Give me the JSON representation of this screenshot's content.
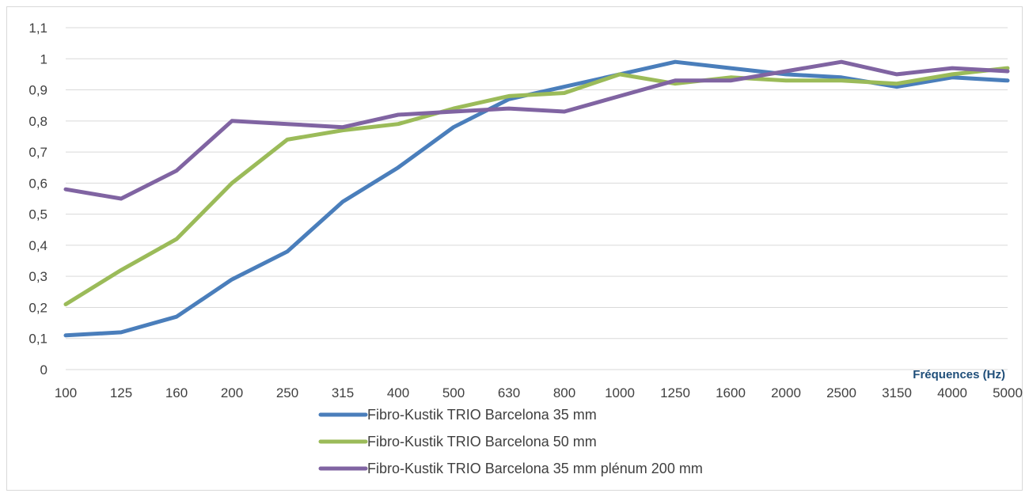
{
  "chart_data": {
    "type": "line",
    "xlabel": "Fréquences (Hz)",
    "ylabel": "",
    "ylim": [
      0,
      1.1
    ],
    "ytick_step": 0.1,
    "grid": "horizontal",
    "legend_position": "bottom",
    "categories": [
      "100",
      "125",
      "160",
      "200",
      "250",
      "315",
      "400",
      "500",
      "630",
      "800",
      "1000",
      "1250",
      "1600",
      "2000",
      "2500",
      "3150",
      "4000",
      "5000"
    ],
    "series": [
      {
        "name": "Fibro-Kustik TRIO Barcelona 35 mm",
        "color": "#4a7ebb",
        "values": [
          0.11,
          0.12,
          0.17,
          0.29,
          0.38,
          0.54,
          0.65,
          0.78,
          0.87,
          0.91,
          0.95,
          0.99,
          0.97,
          0.95,
          0.94,
          0.91,
          0.94,
          0.93
        ]
      },
      {
        "name": "Fibro-Kustik TRIO Barcelona 50 mm",
        "color": "#9bbb59",
        "values": [
          0.21,
          0.32,
          0.42,
          0.6,
          0.74,
          0.77,
          0.79,
          0.84,
          0.88,
          0.89,
          0.95,
          0.92,
          0.94,
          0.93,
          0.93,
          0.92,
          0.95,
          0.97
        ]
      },
      {
        "name": "Fibro-Kustik TRIO Barcelona 35 mm plénum 200 mm",
        "color": "#8064a2",
        "values": [
          0.58,
          0.55,
          0.64,
          0.8,
          0.79,
          0.78,
          0.82,
          0.83,
          0.84,
          0.83,
          0.88,
          0.93,
          0.93,
          0.96,
          0.99,
          0.95,
          0.97,
          0.96
        ]
      }
    ]
  }
}
